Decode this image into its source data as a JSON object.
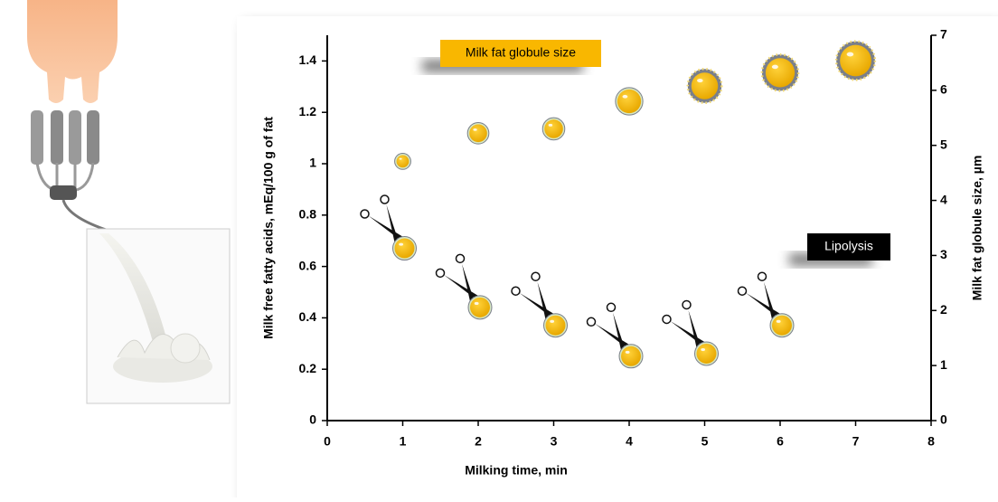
{
  "chart_data": {
    "type": "scatter",
    "x": [
      1,
      2,
      3,
      4,
      5,
      6,
      7
    ],
    "series": [
      {
        "name": "Lipolysis",
        "color": "#f5b800",
        "axis": "y",
        "values": [
          0.72,
          0.49,
          0.42,
          0.3,
          0.31,
          0.42,
          null
        ]
      },
      {
        "name": "Milk fat globule size",
        "color": "#f5b800",
        "axis": "y2",
        "values": [
          4.71,
          5.22,
          5.3,
          5.8,
          6.08,
          6.32,
          6.54
        ]
      }
    ],
    "xlabel": "Milking time, min",
    "ylabel": "Milk free fatty acids, mEq/100 g of fat",
    "y2label": "Milk fat globule size, µm",
    "xlim": [
      0,
      8
    ],
    "xticks": [
      0,
      1,
      2,
      3,
      4,
      5,
      6,
      7,
      8
    ],
    "ylim": [
      0,
      1.5
    ],
    "yticks": [
      0,
      0.2,
      0.4,
      0.6,
      0.8,
      1,
      1.2,
      1.4
    ],
    "y2lim": [
      0,
      7
    ],
    "y2ticks": [
      0,
      1,
      2,
      3,
      4,
      5,
      6,
      7
    ]
  }
}
